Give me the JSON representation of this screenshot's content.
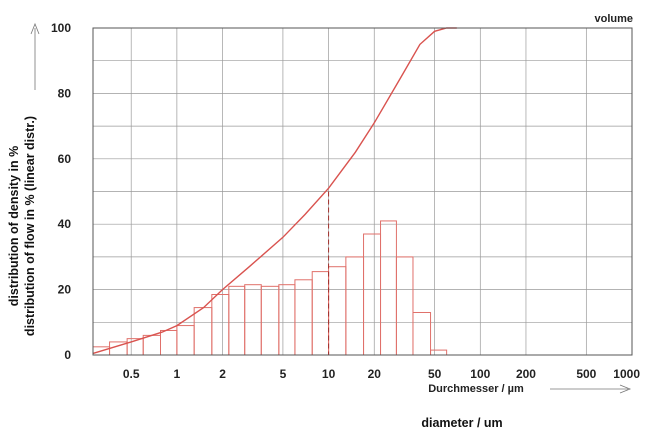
{
  "chart_data": {
    "type": "bar",
    "title": "volume",
    "ylabel_lines": [
      "distribution of density in %",
      "distribution of flow in % (linear distr.)"
    ],
    "xlabel_axis": "Durchmesser / µm",
    "xlabel_caption": "diameter / um",
    "x_scale": "log",
    "xlim": [
      0.28,
      1000
    ],
    "ylim": [
      0,
      100
    ],
    "grid": true,
    "x_ticks": [
      {
        "value": 0.5,
        "label": "0.5"
      },
      {
        "value": 1,
        "label": "1"
      },
      {
        "value": 2,
        "label": "2"
      },
      {
        "value": 5,
        "label": "5"
      },
      {
        "value": 10,
        "label": "10"
      },
      {
        "value": 20,
        "label": "20"
      },
      {
        "value": 50,
        "label": "50"
      },
      {
        "value": 100,
        "label": "100"
      },
      {
        "value": 200,
        "label": "200"
      },
      {
        "value": 500,
        "label": "500"
      },
      {
        "value": 1000,
        "label": "1000"
      }
    ],
    "y_ticks": [
      {
        "value": 0,
        "label": "0"
      },
      {
        "value": 20,
        "label": "20"
      },
      {
        "value": 40,
        "label": "40"
      },
      {
        "value": 60,
        "label": "60"
      },
      {
        "value": 80,
        "label": "80"
      },
      {
        "value": 100,
        "label": "100"
      }
    ],
    "series": [
      {
        "type": "histogram",
        "bins": [
          {
            "x0": 0.28,
            "x1": 0.36,
            "value": 2.5
          },
          {
            "x0": 0.36,
            "x1": 0.47,
            "value": 4
          },
          {
            "x0": 0.47,
            "x1": 0.6,
            "value": 5
          },
          {
            "x0": 0.6,
            "x1": 0.78,
            "value": 6
          },
          {
            "x0": 0.78,
            "x1": 1.0,
            "value": 7.5
          },
          {
            "x0": 1.0,
            "x1": 1.3,
            "value": 9
          },
          {
            "x0": 1.3,
            "x1": 1.7,
            "value": 14.5
          },
          {
            "x0": 1.7,
            "x1": 2.2,
            "value": 18.5
          },
          {
            "x0": 2.2,
            "x1": 2.8,
            "value": 21
          },
          {
            "x0": 2.8,
            "x1": 3.6,
            "value": 21.5
          },
          {
            "x0": 3.6,
            "x1": 4.7,
            "value": 21
          },
          {
            "x0": 4.7,
            "x1": 6.0,
            "value": 21.5
          },
          {
            "x0": 6.0,
            "x1": 7.8,
            "value": 23
          },
          {
            "x0": 7.8,
            "x1": 10,
            "value": 25.5
          },
          {
            "x0": 10,
            "x1": 13,
            "value": 27
          },
          {
            "x0": 13,
            "x1": 17,
            "value": 30
          },
          {
            "x0": 17,
            "x1": 22,
            "value": 37
          },
          {
            "x0": 22,
            "x1": 28,
            "value": 41
          },
          {
            "x0": 28,
            "x1": 36,
            "value": 30
          },
          {
            "x0": 36,
            "x1": 47,
            "value": 13
          },
          {
            "x0": 47,
            "x1": 60,
            "value": 1.5
          }
        ]
      },
      {
        "type": "line",
        "x": [
          0.28,
          0.5,
          0.8,
          1.0,
          1.5,
          2,
          3,
          5,
          7,
          10,
          15,
          20,
          30,
          40,
          50,
          60,
          70
        ],
        "y": [
          0.5,
          4,
          7,
          9,
          14.5,
          20,
          27,
          36,
          43,
          51,
          62,
          71,
          85,
          95,
          99,
          100,
          100
        ]
      }
    ],
    "median_x": 10,
    "median_y": 50
  }
}
